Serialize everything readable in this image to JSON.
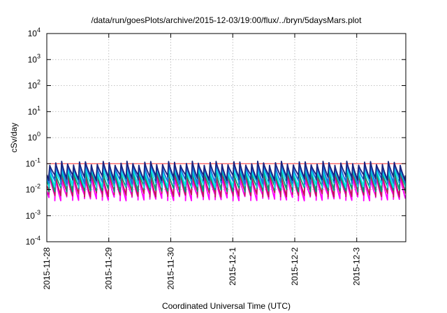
{
  "chart_data": {
    "type": "line",
    "title": "/data/run/goesPlots/archive/2015-12-03/19:00/flux/../bryn/5daysMars.plot",
    "xlabel": "Coordinated Universal Time (UTC)",
    "ylabel": "cSv/day",
    "y_scale": "log",
    "ylim": [
      0.0001,
      10000
    ],
    "y_ticks": [
      {
        "value": 0.0001,
        "base": "10",
        "exp": "-4"
      },
      {
        "value": 0.001,
        "base": "10",
        "exp": "-3"
      },
      {
        "value": 0.01,
        "base": "10",
        "exp": "-2"
      },
      {
        "value": 0.1,
        "base": "10",
        "exp": "-1"
      },
      {
        "value": 1,
        "base": "10",
        "exp": "0"
      },
      {
        "value": 10,
        "base": "10",
        "exp": "1"
      },
      {
        "value": 100,
        "base": "10",
        "exp": "2"
      },
      {
        "value": 1000,
        "base": "10",
        "exp": "3"
      },
      {
        "value": 10000,
        "base": "10",
        "exp": "4"
      }
    ],
    "xlim": [
      "2015-11-28 00:00",
      "2015-12-03 19:00"
    ],
    "x_tick_labels": [
      "2015-11-28",
      "2015-11-29",
      "2015-11-30",
      "2015-12-1",
      "2015-12-2",
      "2015-12-3"
    ],
    "grid": true,
    "reference_line": {
      "y": 0.1,
      "color": "#ff3030"
    },
    "pattern": {
      "cycle_hours": 2.3,
      "drop_fraction": 0.15
    },
    "series": [
      {
        "color": "#ff00ff",
        "peak": 0.028,
        "low": 0.005
      },
      {
        "color": "#c2185b",
        "peak": 0.038,
        "low": 0.007
      },
      {
        "color": "#009e73",
        "peak": 0.05,
        "low": 0.011
      },
      {
        "color": "#00e5ee",
        "peak": 0.065,
        "low": 0.016
      },
      {
        "color": "#1f6fe0",
        "peak": 0.085,
        "low": 0.022
      },
      {
        "color": "#1a237e",
        "peak": 0.105,
        "low": 0.03
      }
    ]
  }
}
